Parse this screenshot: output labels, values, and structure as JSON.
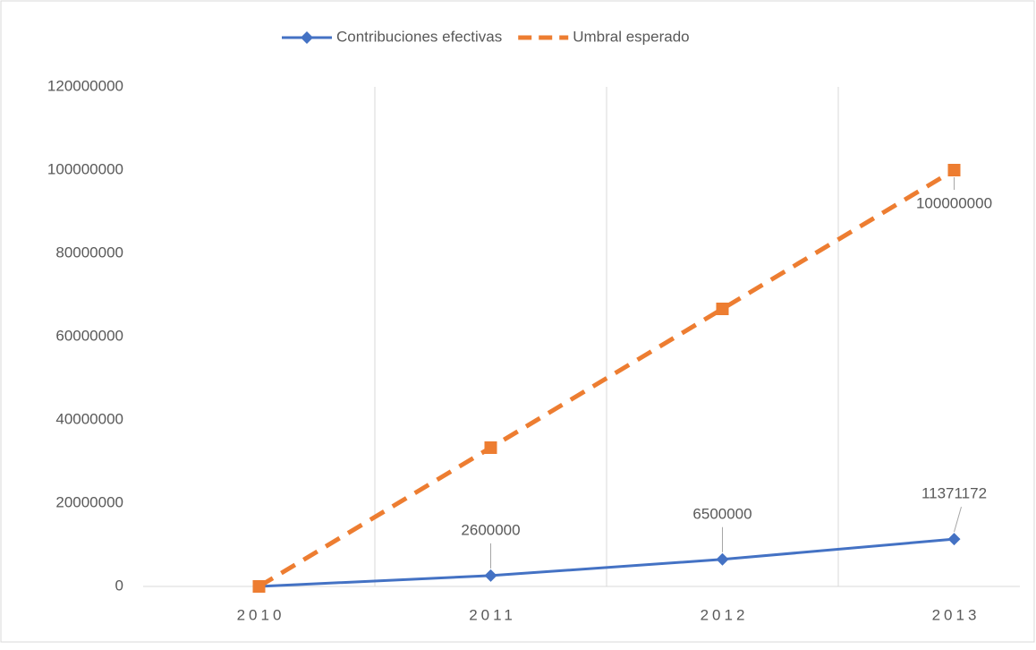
{
  "chart_data": {
    "type": "line",
    "categories": [
      "2010",
      "2011",
      "2012",
      "2013"
    ],
    "series": [
      {
        "name": "Contribuciones efectivas",
        "color": "#4472c4",
        "dash": false,
        "marker": "diamond",
        "values": [
          0,
          2600000,
          6500000,
          11371172
        ],
        "value_labels": [
          null,
          "2600000",
          "6500000",
          "11371172"
        ]
      },
      {
        "name": "Umbral esperado",
        "color": "#ed7d31",
        "dash": true,
        "marker": "square",
        "values": [
          0,
          33333333,
          66666667,
          100000000
        ],
        "value_labels": [
          null,
          null,
          null,
          "100000000"
        ]
      }
    ],
    "ylim": [
      0,
      120000000
    ],
    "yticks": [
      0,
      20000000,
      40000000,
      60000000,
      80000000,
      100000000,
      120000000
    ],
    "grid": "x",
    "legend": "top"
  }
}
